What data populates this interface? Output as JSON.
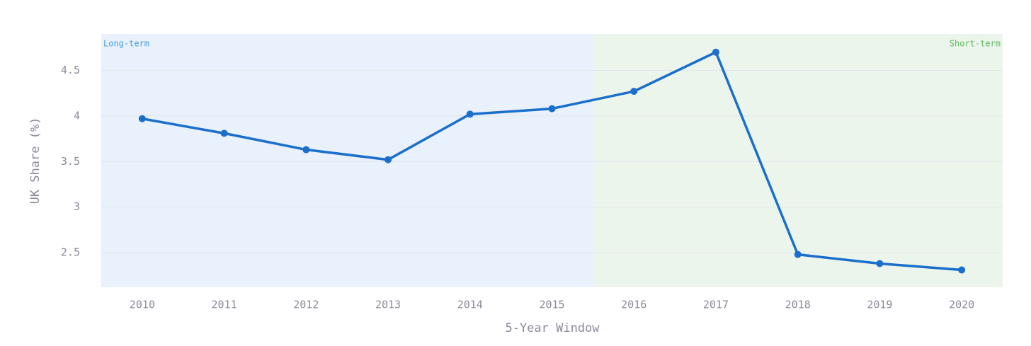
{
  "chart_data": {
    "type": "line",
    "x_label": "5-Year Window",
    "y_label": "UK Share (%)",
    "x": [
      2010,
      2011,
      2012,
      2013,
      2014,
      2015,
      2016,
      2017,
      2018,
      2019,
      2020
    ],
    "xlim": [
      2009.5,
      2020.5
    ],
    "xticks": [
      2010,
      2011,
      2012,
      2013,
      2014,
      2015,
      2016,
      2017,
      2018,
      2019,
      2020
    ],
    "ylim": [
      2.12,
      4.9
    ],
    "yticks": [
      2.5,
      3,
      3.5,
      4,
      4.5
    ],
    "grid": true,
    "series": [
      {
        "color": "#1a6fcc",
        "values": [
          3.97,
          3.81,
          3.63,
          3.52,
          4.02,
          4.08,
          4.27,
          4.7,
          2.48,
          2.38,
          2.31
        ]
      }
    ],
    "regions": [
      {
        "label": "Long-term",
        "from": 2009.5,
        "to": 2015.5,
        "color": "#e8f1fc",
        "label_color": "#4a9fe0"
      },
      {
        "label": "Short-term",
        "from": 2015.5,
        "to": 2020.5,
        "color": "#ecf5ec",
        "label_color": "#5cb85c"
      }
    ]
  }
}
